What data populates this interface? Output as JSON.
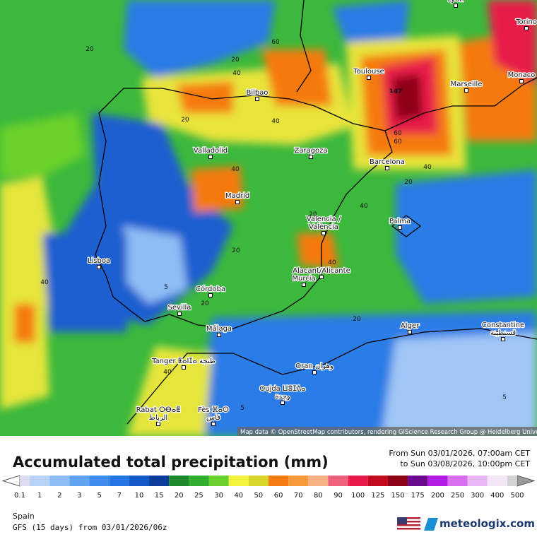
{
  "map": {
    "cities": [
      [
        "Lyon"
      ],
      [
        "Torino"
      ],
      [
        "Monaco"
      ],
      [
        "Marseille"
      ],
      [
        "Toulouse"
      ],
      [
        "Bilbao"
      ],
      [
        "Zaragoza"
      ],
      [
        "Barcelona"
      ],
      [
        "Valladolid"
      ],
      [
        "Madrid"
      ],
      [
        "Valencia /",
        "València"
      ],
      [
        "Palma"
      ],
      [
        "Lisboa"
      ],
      [
        "Alacant/Alicante"
      ],
      [
        "Murcia"
      ],
      [
        "Córdoba"
      ],
      [
        "Sevilla"
      ],
      [
        "Málaga"
      ],
      [
        "Tanger ⵟⴰⵏⵊⴰ طنجة"
      ],
      [
        "Oran وهران"
      ],
      [
        "Alger"
      ],
      [
        "Constantine",
        "قسنطينة"
      ],
      [
        "Oujda ⵡⴻⵊⴷⴰ",
        "وجدة"
      ],
      [
        "Rabat ⵔⴱⴰⵟ",
        "الرباط"
      ],
      [
        "Fès ⴼⴰⵙ",
        "فاس"
      ]
    ],
    "contour_labels": [
      "20",
      "60",
      "20",
      "40",
      "147",
      "20",
      "40",
      "60",
      "60",
      "40",
      "40",
      "20",
      "40",
      "20",
      "20",
      "40",
      "40",
      "5",
      "20",
      "20",
      "40",
      "5",
      "5"
    ],
    "attribution": "Map data © OpenStreetMap contributors, rendering GIScience Research Group @ Heidelberg University"
  },
  "legend": {
    "title": "Accumulated total precipitation (mm)",
    "period_from": "From Sun 03/01/2026, 07:00am CET",
    "period_to": "to Sun 03/08/2026, 10:00pm CET",
    "ticks": [
      "0.1",
      "1",
      "2",
      "3",
      "5",
      "7",
      "10",
      "15",
      "20",
      "25",
      "30",
      "40",
      "50",
      "60",
      "70",
      "80",
      "90",
      "100",
      "125",
      "150",
      "175",
      "200",
      "250",
      "300",
      "400",
      "500"
    ],
    "colors": [
      "#dcdcf0",
      "#b9d3f7",
      "#8ebdf5",
      "#5fa3f1",
      "#3f8cef",
      "#2574e6",
      "#1458cc",
      "#0c3c9c",
      "#1d8a2d",
      "#2fae2f",
      "#6ad12c",
      "#f3f23c",
      "#d8d52c",
      "#f57a10",
      "#f89a3a",
      "#f7b283",
      "#f0607f",
      "#e81a4a",
      "#c40b1e",
      "#8e0015",
      "#6a0a8c",
      "#b31de6",
      "#d86ef0",
      "#eab6f3",
      "#f3e6f7",
      "#d3d3d3"
    ],
    "left_color": "#ffffff",
    "right_color": "#9a9a9a"
  },
  "footer": {
    "region": "Spain",
    "model": "GFS (15 days) from 03/01/2026/06z",
    "brand": "meteologix.com"
  }
}
